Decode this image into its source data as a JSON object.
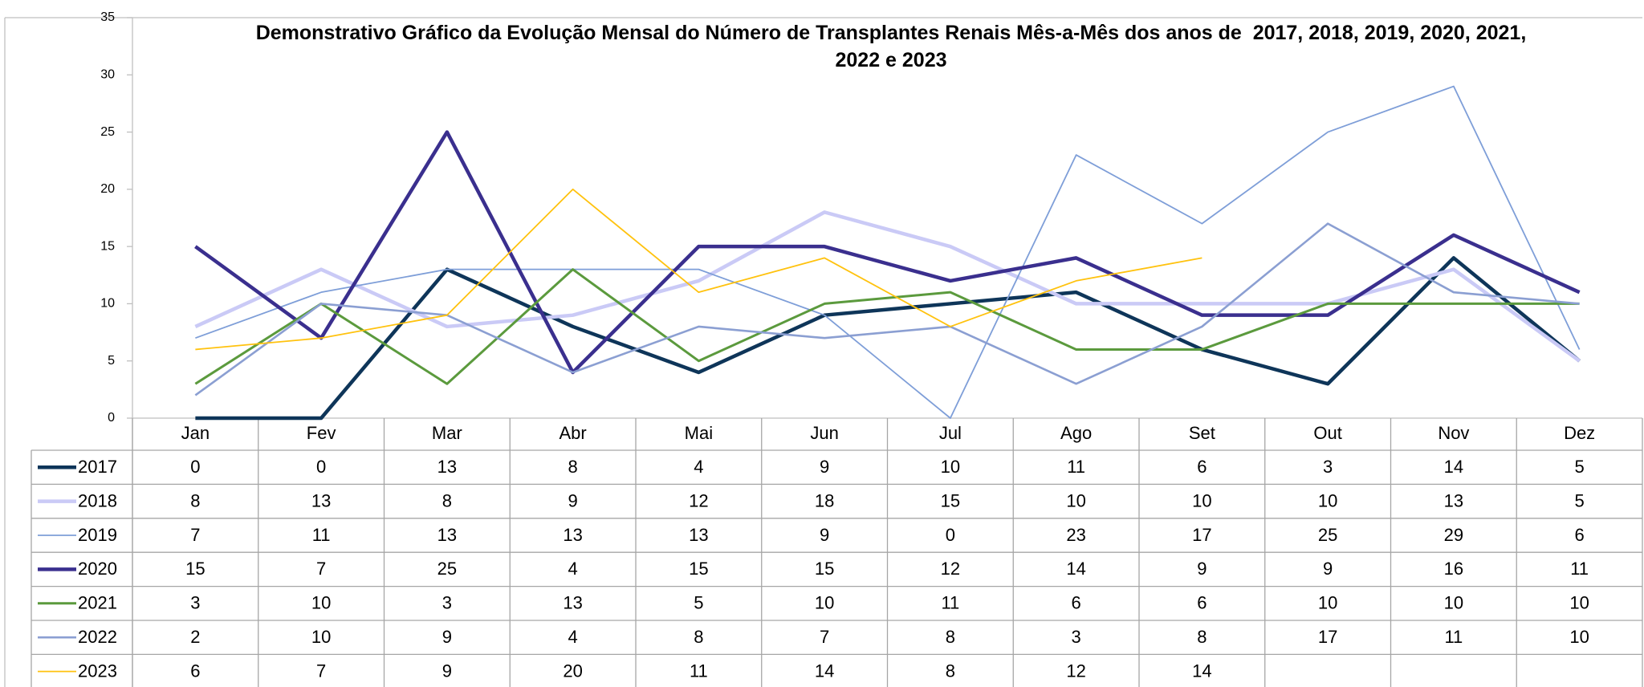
{
  "chart_data": {
    "type": "line",
    "title": "Demonstrativo Gráfico da Evolução Mensal do Número de Transplantes Renais Mês-a-Mês dos anos de  2017, 2018, 2019, 2020, 2021, 2022 e 2023",
    "categories": [
      "Jan",
      "Fev",
      "Mar",
      "Abr",
      "Mai",
      "Jun",
      "Jul",
      "Ago",
      "Set",
      "Out",
      "Nov",
      "Dez"
    ],
    "ylim": [
      0,
      35
    ],
    "yticks": [
      0,
      5,
      10,
      15,
      20,
      25,
      30,
      35
    ],
    "grid": false,
    "data_table": true,
    "series": [
      {
        "name": "2017",
        "color": "#0e3559",
        "values": [
          0,
          0,
          13,
          8,
          4,
          9,
          10,
          11,
          6,
          3,
          14,
          5
        ]
      },
      {
        "name": "2018",
        "color": "#cacaf6",
        "values": [
          8,
          13,
          8,
          9,
          12,
          18,
          15,
          10,
          10,
          10,
          13,
          5
        ]
      },
      {
        "name": "2019",
        "color": "#7e9ed8",
        "values": [
          7,
          11,
          13,
          13,
          13,
          9,
          0,
          23,
          17,
          25,
          29,
          6
        ]
      },
      {
        "name": "2020",
        "color": "#3a2f8e",
        "values": [
          15,
          7,
          25,
          4,
          15,
          15,
          12,
          14,
          9,
          9,
          16,
          11
        ]
      },
      {
        "name": "2021",
        "color": "#5b9a3d",
        "values": [
          3,
          10,
          3,
          13,
          5,
          10,
          11,
          6,
          6,
          10,
          10,
          10
        ]
      },
      {
        "name": "2022",
        "color": "#8b9fd2",
        "values": [
          2,
          10,
          9,
          4,
          8,
          7,
          8,
          3,
          8,
          17,
          11,
          10
        ]
      },
      {
        "name": "2023",
        "color": "#ffc20e",
        "values": [
          6,
          7,
          9,
          20,
          11,
          14,
          8,
          12,
          14,
          null,
          null,
          null
        ]
      }
    ]
  }
}
